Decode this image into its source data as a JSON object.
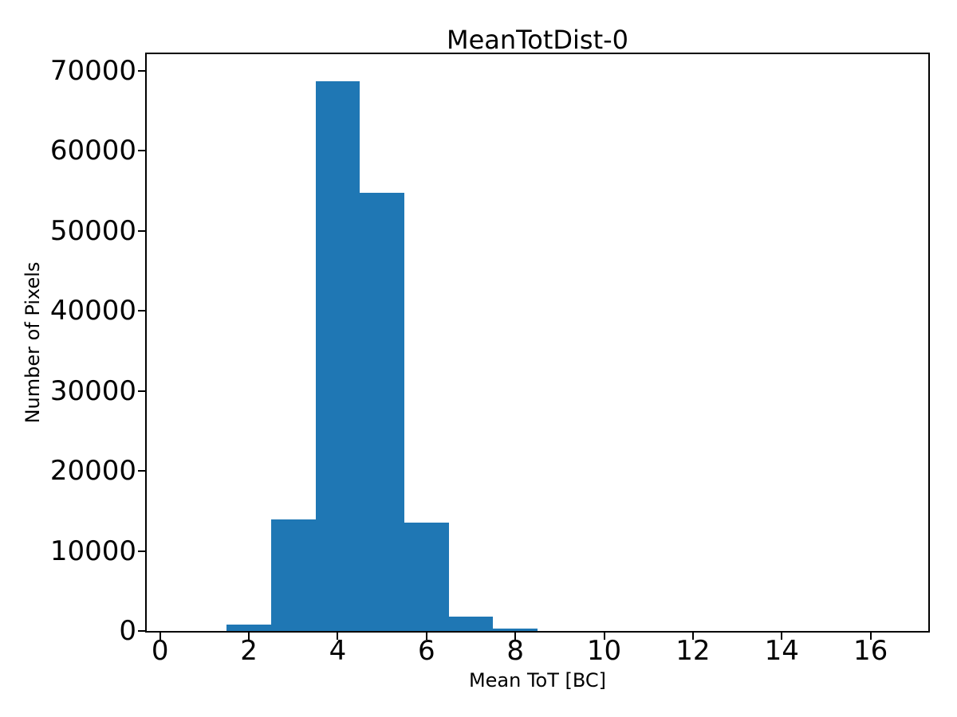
{
  "figure": {
    "background": "#ffffff",
    "text_color": "#000000"
  },
  "chart_data": {
    "type": "bar",
    "subtype": "histogram",
    "title": "MeanTotDist-0",
    "xlabel": "Mean ToT [BC]",
    "ylabel": "Number of Pixels",
    "bin_edges": [
      1.5,
      2.5,
      3.5,
      4.5,
      5.5,
      6.5,
      7.5,
      8.5
    ],
    "categories": [
      2,
      3,
      4,
      5,
      6,
      7,
      8
    ],
    "values": [
      800,
      13900,
      68650,
      54800,
      13500,
      1800,
      300
    ],
    "xticks": [
      0,
      2,
      4,
      6,
      8,
      10,
      12,
      14,
      16
    ],
    "yticks": [
      0,
      10000,
      20000,
      30000,
      40000,
      50000,
      60000,
      70000
    ],
    "xlim": [
      -0.3,
      17.3
    ],
    "ylim": [
      0,
      72070
    ],
    "bar_color": "#1f77b4",
    "axis_color": "#000000",
    "grid": false,
    "legend_position": "none"
  }
}
